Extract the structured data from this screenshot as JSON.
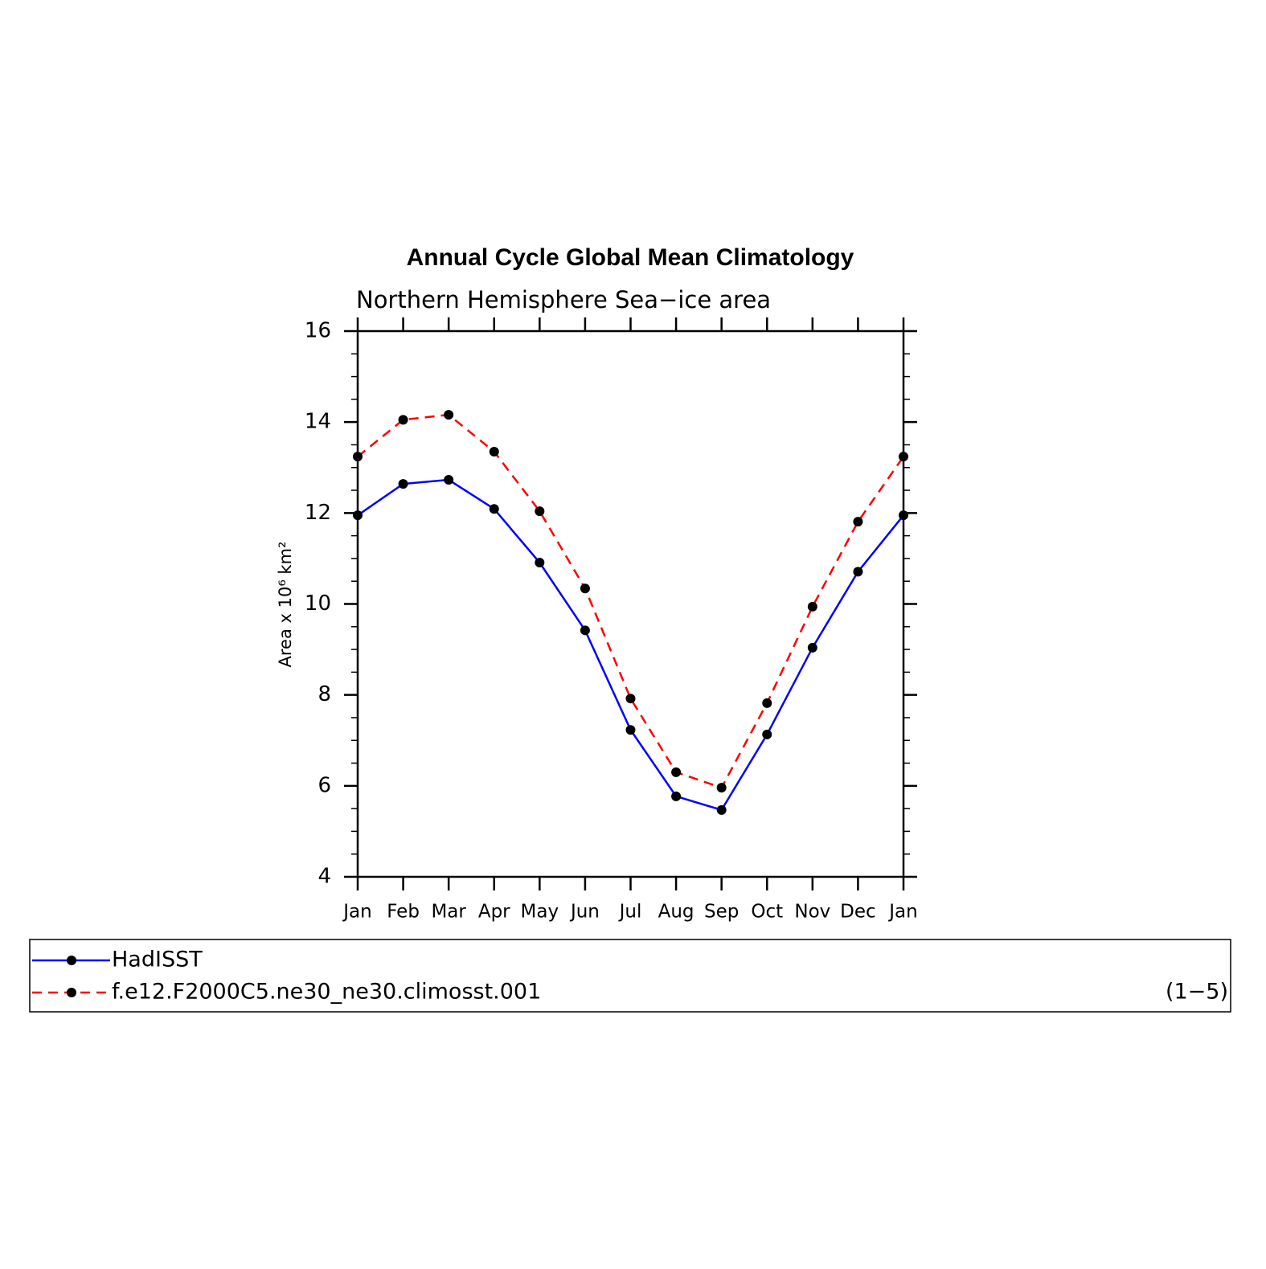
{
  "chart_data": {
    "type": "line",
    "title": "Annual Cycle Global Mean Climatology",
    "subtitle": "Northern Hemisphere Sea−ice area",
    "y_label": "Area x 10⁶ km²",
    "annotation": "(1−5)",
    "categories": [
      "Jan",
      "Feb",
      "Mar",
      "Apr",
      "May",
      "Jun",
      "Jul",
      "Aug",
      "Sep",
      "Oct",
      "Nov",
      "Dec",
      "Jan"
    ],
    "series": [
      {
        "name": "HadISST",
        "color": "#0000ff",
        "linestyle": "solid",
        "values": [
          11.95,
          12.64,
          12.73,
          12.09,
          10.91,
          9.42,
          7.23,
          5.77,
          5.47,
          7.13,
          9.04,
          10.71,
          11.95
        ]
      },
      {
        "name": "f.e12.F2000C5.ne30_ne30.climosst.001",
        "color": "#ff0000",
        "linestyle": "dashed",
        "values": [
          13.24,
          14.05,
          14.16,
          13.35,
          12.04,
          10.34,
          7.92,
          6.3,
          5.96,
          7.82,
          9.94,
          11.81,
          13.24
        ]
      }
    ],
    "ylim": [
      4,
      16
    ],
    "yticks": [
      4,
      6,
      8,
      10,
      12,
      14,
      16
    ],
    "yminorticks": [
      4.5,
      5,
      5.5,
      6.5,
      7,
      7.5,
      8.5,
      9,
      9.5,
      10.5,
      11,
      11.5,
      12.5,
      13,
      13.5,
      14.5,
      15,
      15.5
    ],
    "marker_color": "#000000"
  }
}
